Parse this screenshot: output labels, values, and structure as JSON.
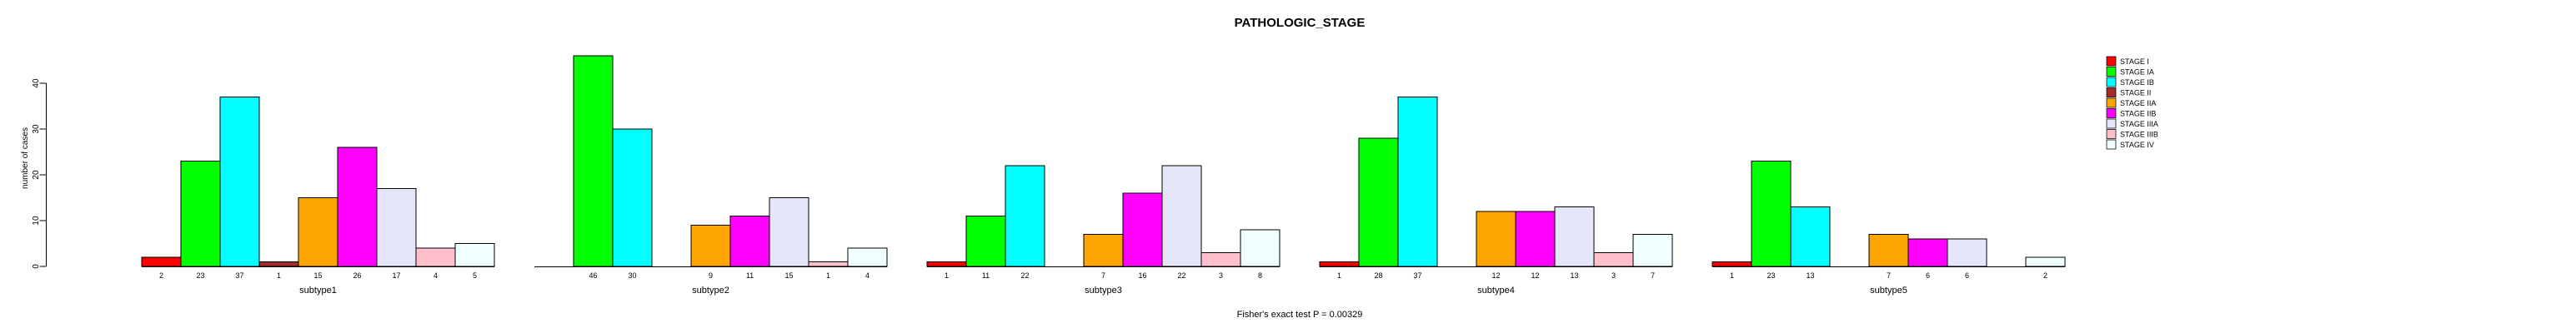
{
  "chart_data": {
    "type": "bar",
    "title": "PATHOLOGIC_STAGE",
    "ylabel": "number of cases",
    "xlabel": "",
    "footer": "Fisher's exact test P = 0.00329",
    "ylim": [
      0,
      40
    ],
    "yticks": [
      0,
      10,
      20,
      30,
      40
    ],
    "grid": false,
    "legend_position": "right",
    "bar_border_color": "#000000",
    "categories": [
      "subtype1",
      "subtype2",
      "subtype3",
      "subtype4",
      "subtype5"
    ],
    "series": [
      {
        "name": "STAGE I",
        "color": "#ff0000",
        "values": [
          2,
          0,
          1,
          1,
          1
        ]
      },
      {
        "name": "STAGE IA",
        "color": "#00ff00",
        "values": [
          23,
          46,
          11,
          28,
          23
        ]
      },
      {
        "name": "STAGE IB",
        "color": "#00ffff",
        "values": [
          37,
          30,
          22,
          37,
          13
        ]
      },
      {
        "name": "STAGE II",
        "color": "#a52a2a",
        "values": [
          1,
          0,
          0,
          0,
          0
        ]
      },
      {
        "name": "STAGE IIA",
        "color": "#ffa500",
        "values": [
          15,
          9,
          7,
          12,
          7
        ]
      },
      {
        "name": "STAGE IIB",
        "color": "#ff00ff",
        "values": [
          26,
          11,
          16,
          12,
          6
        ]
      },
      {
        "name": "STAGE IIIA",
        "color": "#e6e6fa",
        "values": [
          17,
          15,
          22,
          13,
          6
        ]
      },
      {
        "name": "STAGE IIIB",
        "color": "#ffc0cb",
        "values": [
          4,
          1,
          3,
          3,
          0
        ]
      },
      {
        "name": "STAGE IV",
        "color": "#f0ffff",
        "values": [
          5,
          4,
          8,
          7,
          2
        ]
      }
    ]
  }
}
